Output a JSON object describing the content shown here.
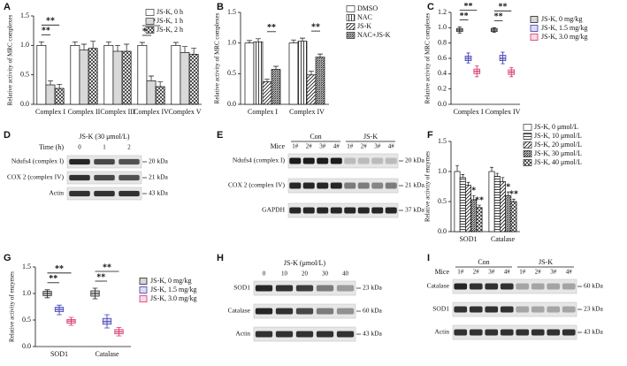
{
  "chart_data": [
    {
      "panel": "A",
      "type": "bar",
      "ylabel": "Relative activity of MRC complexes",
      "categories": [
        "Complex I",
        "Complex II",
        "Complex III",
        "Complex IV",
        "Complex V"
      ],
      "ylim": [
        0,
        1.5
      ],
      "yticks": [
        {
          "value": 0,
          "label": "0.0"
        },
        0.5,
        {
          "value": 1,
          "label": "1.0"
        },
        1.5
      ],
      "legend": "right",
      "series": [
        {
          "name": "JS-K, 0 h",
          "color": "#ffffff",
          "pattern": "none",
          "values": [
            1,
            1,
            1,
            1,
            1
          ],
          "errors": [
            0.06,
            0.06,
            0.06,
            0.05,
            0.05
          ]
        },
        {
          "name": "JS-K, 1 h",
          "color": "#d9d9d9",
          "pattern": "none",
          "values": [
            0.33,
            0.92,
            0.9,
            0.4,
            0.88
          ],
          "errors": [
            0.07,
            0.1,
            0.1,
            0.08,
            0.1
          ]
        },
        {
          "name": "JS-K, 2 h",
          "color": "#ffffff",
          "pattern": "cross",
          "values": [
            0.27,
            0.95,
            0.9,
            0.3,
            0.85
          ],
          "errors": [
            0.07,
            0.12,
            0.12,
            0.08,
            0.1
          ]
        }
      ],
      "annotations": [
        {
          "text": "**",
          "category": 0,
          "from": 0,
          "to": 1
        },
        {
          "text": "**",
          "category": 0,
          "from": 0,
          "to": 2
        },
        {
          "text": "**",
          "category": 3,
          "from": 0,
          "to": 1
        },
        {
          "text": "**",
          "category": 3,
          "from": 0,
          "to": 2
        }
      ]
    },
    {
      "panel": "B",
      "type": "bar",
      "ylabel": "Relative activity of MRC complexes",
      "categories": [
        "Complex I",
        "Complex IV"
      ],
      "ylim": [
        0,
        1.5
      ],
      "yticks": [
        {
          "value": 0,
          "label": "0.0"
        },
        0.5,
        {
          "value": 1,
          "label": "1.0"
        },
        1.5
      ],
      "legend": "right",
      "series": [
        {
          "name": "DMSO",
          "color": "#ffffff",
          "pattern": "none",
          "values": [
            1,
            1
          ],
          "errors": [
            0.04,
            0.05
          ]
        },
        {
          "name": "NAC",
          "color": "#ffffff",
          "pattern": "vlines",
          "values": [
            1.02,
            1.03
          ],
          "errors": [
            0.05,
            0.05
          ]
        },
        {
          "name": "JS-K",
          "color": "#ffffff",
          "pattern": "diag",
          "values": [
            0.37,
            0.48
          ],
          "errors": [
            0.04,
            0.06
          ]
        },
        {
          "name": "NAC+JS-K",
          "color": "#ffffff",
          "pattern": "dense",
          "values": [
            0.57,
            0.77
          ],
          "errors": [
            0.05,
            0.05
          ]
        }
      ],
      "annotations": [
        {
          "text": "**",
          "category": 0,
          "from": 2,
          "to": 3
        },
        {
          "text": "**",
          "category": 1,
          "from": 2,
          "to": 3
        }
      ]
    },
    {
      "panel": "C",
      "type": "box",
      "ylabel": "Relative activity of MRC complexes",
      "categories": [
        "Complex I",
        "Complex IV"
      ],
      "ylim": [
        0,
        1.2
      ],
      "yticks": [
        {
          "value": 0,
          "label": "0.0"
        },
        0.2,
        0.4,
        0.6,
        0.8,
        {
          "value": 1,
          "label": "1.0"
        },
        1.2
      ],
      "legend": "right",
      "series": [
        {
          "name": "JS-K, 0 mg/kg",
          "color": "#222222",
          "min": [
            0.93,
            0.94
          ],
          "q1": [
            0.95,
            0.95
          ],
          "median": [
            0.97,
            0.97
          ],
          "q3": [
            0.99,
            0.99
          ],
          "max": [
            1.01,
            1.0
          ]
        },
        {
          "name": "JS-K, 1.5 mg/kg",
          "color": "#3b3bb3",
          "min": [
            0.54,
            0.53
          ],
          "q1": [
            0.57,
            0.57
          ],
          "median": [
            0.6,
            0.6
          ],
          "q3": [
            0.63,
            0.64
          ],
          "max": [
            0.67,
            0.68
          ]
        },
        {
          "name": "JS-K, 3.0 mg/kg",
          "color": "#d6336c",
          "min": [
            0.36,
            0.36
          ],
          "q1": [
            0.4,
            0.39
          ],
          "median": [
            0.43,
            0.42
          ],
          "q3": [
            0.46,
            0.45
          ],
          "max": [
            0.5,
            0.48
          ]
        }
      ],
      "annotations": [
        {
          "text": "**",
          "category": 0,
          "from": 0,
          "to": 1
        },
        {
          "text": "**",
          "category": 0,
          "from": 0,
          "to": 2
        },
        {
          "text": "**",
          "category": 1,
          "from": 0,
          "to": 1
        },
        {
          "text": "**",
          "category": 1,
          "from": 0,
          "to": 2
        }
      ]
    },
    {
      "panel": "F",
      "type": "bar",
      "ylabel": "Relative activity of enzymes",
      "categories": [
        "SOD1",
        "Catalase"
      ],
      "ylim": [
        0,
        1.5
      ],
      "yticks": [
        {
          "value": 0,
          "label": "0.0"
        },
        0.5,
        {
          "value": 1,
          "label": "1.0"
        },
        1.5
      ],
      "legend": "right",
      "series": [
        {
          "name": "JS-K, 0 μmol/L",
          "color": "#ffffff",
          "pattern": "none",
          "values": [
            1,
            1
          ],
          "errors": [
            0.1,
            0.07
          ]
        },
        {
          "name": "JS-K, 10 μmol/L",
          "color": "#ffffff",
          "pattern": "hlines",
          "values": [
            0.9,
            0.92
          ],
          "errors": [
            0.05,
            0.05
          ]
        },
        {
          "name": "JS-K, 20 μmol/L",
          "color": "#ffffff",
          "pattern": "diag",
          "values": [
            0.77,
            0.83
          ],
          "errors": [
            0.05,
            0.07
          ]
        },
        {
          "name": "JS-K, 30 μmol/L",
          "color": "#ffffff",
          "pattern": "dense",
          "values": [
            0.53,
            0.6
          ],
          "errors": [
            0.07,
            0.06
          ]
        },
        {
          "name": "JS-K, 40 μmol/L",
          "color": "#ffffff",
          "pattern": "cross",
          "values": [
            0.4,
            0.5
          ],
          "errors": [
            0.04,
            0.04
          ]
        }
      ],
      "annotations": [
        {
          "text": "*",
          "category": 0,
          "series": 3
        },
        {
          "text": "**",
          "category": 0,
          "series": 4
        },
        {
          "text": "*",
          "category": 1,
          "series": 3
        },
        {
          "text": "**",
          "category": 1,
          "series": 4
        }
      ]
    },
    {
      "panel": "G",
      "type": "box",
      "ylabel": "Relative activity of enzymes",
      "categories": [
        "SOD1",
        "Catalase"
      ],
      "ylim": [
        0,
        1.5
      ],
      "yticks": [
        {
          "value": 0,
          "label": "0.0"
        },
        0.5,
        {
          "value": 1,
          "label": "1.0"
        },
        1.5
      ],
      "legend": "right",
      "series": [
        {
          "name": "JS-K, 0 mg/kg",
          "color": "#222222",
          "min": [
            0.92,
            0.9
          ],
          "q1": [
            0.96,
            0.95
          ],
          "median": [
            1.0,
            1.0
          ],
          "q3": [
            1.04,
            1.05
          ],
          "max": [
            1.07,
            1.1
          ]
        },
        {
          "name": "JS-K, 1.5 mg/kg",
          "color": "#3b3bb3",
          "min": [
            0.6,
            0.35
          ],
          "q1": [
            0.66,
            0.42
          ],
          "median": [
            0.7,
            0.47
          ],
          "q3": [
            0.74,
            0.53
          ],
          "max": [
            0.78,
            0.6
          ]
        },
        {
          "name": "JS-K, 3.0 mg/kg",
          "color": "#d6336c",
          "min": [
            0.4,
            0.2
          ],
          "q1": [
            0.44,
            0.24
          ],
          "median": [
            0.48,
            0.28
          ],
          "q3": [
            0.51,
            0.32
          ],
          "max": [
            0.55,
            0.36
          ]
        }
      ],
      "annotations": [
        {
          "text": "**",
          "category": 0,
          "from": 0,
          "to": 1
        },
        {
          "text": "**",
          "category": 0,
          "from": 0,
          "to": 2
        },
        {
          "text": "**",
          "category": 1,
          "from": 0,
          "to": 1
        },
        {
          "text": "**",
          "category": 1,
          "from": 0,
          "to": 2
        }
      ]
    }
  ],
  "blots": [
    {
      "panel": "D",
      "title": "JS-K  (30 μmol/L)",
      "lane_title": "Time (h)",
      "lanes": [
        "0",
        "1",
        "2"
      ],
      "rows": [
        {
          "label": "Ndufs4 (complex I)",
          "size": "20 kDa",
          "bands": [
            0.9,
            0.75,
            0.7
          ]
        },
        {
          "label": "COX 2 (complex IV)",
          "size": "21 kDa",
          "bands": [
            0.85,
            0.75,
            0.7
          ]
        },
        {
          "label": "Actin",
          "size": "43 kDa",
          "bands": [
            0.85,
            0.85,
            0.85
          ]
        }
      ]
    },
    {
      "panel": "E",
      "lane_title": "Mice",
      "groups": [
        "Con",
        "JS-K"
      ],
      "lanes": [
        "1#",
        "2#",
        "3#",
        "4#",
        "1#",
        "2#",
        "3#",
        "4#"
      ],
      "rows": [
        {
          "label": "Ndufs4 (complex I)",
          "size": "20 kDa",
          "bands": [
            0.95,
            0.95,
            0.95,
            0.95,
            0.2,
            0.2,
            0.2,
            0.2
          ]
        },
        {
          "label": "COX 2 (complex IV)",
          "size": "21 kDa",
          "bands": [
            0.9,
            0.9,
            0.9,
            0.9,
            0.5,
            0.5,
            0.45,
            0.5
          ]
        },
        {
          "label": "GAPDH",
          "size": "37 kDa",
          "bands": [
            0.9,
            0.9,
            0.9,
            0.9,
            0.9,
            0.9,
            0.9,
            0.9
          ]
        }
      ]
    },
    {
      "panel": "H",
      "title": "JS-K  (μmol/L)",
      "lanes": [
        "0",
        "10",
        "20",
        "30",
        "40"
      ],
      "rows": [
        {
          "label": "SOD1",
          "size": "23 kDa",
          "bands": [
            0.9,
            0.85,
            0.8,
            0.5,
            0.35
          ]
        },
        {
          "label": "Catalase",
          "size": "60 kDa",
          "bands": [
            0.9,
            0.85,
            0.75,
            0.5,
            0.4
          ]
        },
        {
          "label": "Actin",
          "size": "43 kDa",
          "bands": [
            0.85,
            0.85,
            0.85,
            0.85,
            0.85
          ]
        }
      ]
    },
    {
      "panel": "I",
      "lane_title": "Mice",
      "groups": [
        "Con",
        "JS-K"
      ],
      "lanes": [
        "1#",
        "2#",
        "3#",
        "4#",
        "1#",
        "2#",
        "3#",
        "4#"
      ],
      "rows": [
        {
          "label": "Catalase",
          "size": "60 kDa",
          "bands": [
            0.9,
            0.85,
            0.85,
            0.85,
            0.3,
            0.3,
            0.3,
            0.3
          ]
        },
        {
          "label": "SOD1",
          "size": "23 kDa",
          "bands": [
            0.85,
            0.85,
            0.85,
            0.85,
            0.3,
            0.3,
            0.3,
            0.3
          ]
        },
        {
          "label": "Actin",
          "size": "43 kDa",
          "bands": [
            0.85,
            0.85,
            0.85,
            0.85,
            0.85,
            0.85,
            0.85,
            0.85
          ]
        }
      ]
    }
  ]
}
